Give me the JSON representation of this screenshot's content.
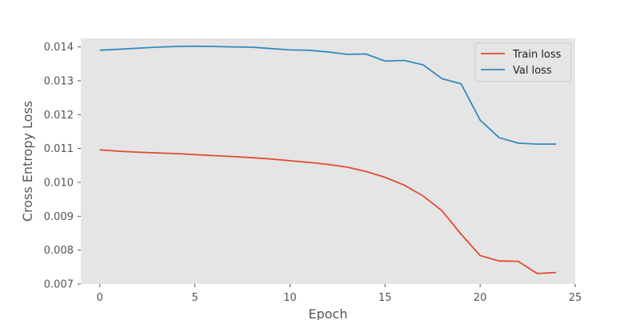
{
  "chart_data": {
    "type": "line",
    "title": "",
    "xlabel": "Epoch",
    "ylabel": "Cross Entropy Loss",
    "xlim": [
      -1,
      25
    ],
    "ylim": [
      0.007,
      0.01425
    ],
    "xticks": [
      0,
      5,
      10,
      15,
      20,
      25
    ],
    "yticks": [
      0.007,
      0.008,
      0.009,
      0.01,
      0.011,
      0.012,
      0.013,
      0.014
    ],
    "ytick_labels": [
      "0.007",
      "0.008",
      "0.009",
      "0.010",
      "0.011",
      "0.012",
      "0.013",
      "0.014"
    ],
    "grid": false,
    "legend_position": "top-right",
    "x": [
      0,
      1,
      2,
      3,
      4,
      5,
      6,
      7,
      8,
      9,
      10,
      11,
      12,
      13,
      14,
      15,
      16,
      17,
      18,
      19,
      20,
      21,
      22,
      23,
      24
    ],
    "series": [
      {
        "name": "Train loss",
        "color": "#E24A33",
        "values": [
          0.01096,
          0.01092,
          0.01089,
          0.01087,
          0.01085,
          0.01082,
          0.01079,
          0.01076,
          0.01073,
          0.01069,
          0.01064,
          0.01059,
          0.01053,
          0.01045,
          0.01032,
          0.01015,
          0.00992,
          0.0096,
          0.00916,
          0.00847,
          0.00784,
          0.00768,
          0.00767,
          0.00731,
          0.00734
        ]
      },
      {
        "name": "Val loss",
        "color": "#348ABD",
        "values": [
          0.0139,
          0.01393,
          0.01396,
          0.01399,
          0.01401,
          0.01402,
          0.01401,
          0.014,
          0.01399,
          0.01395,
          0.01391,
          0.0139,
          0.01385,
          0.01378,
          0.01379,
          0.01358,
          0.0136,
          0.01347,
          0.01306,
          0.01291,
          0.01184,
          0.01132,
          0.01116,
          0.01113,
          0.01113
        ]
      }
    ]
  }
}
